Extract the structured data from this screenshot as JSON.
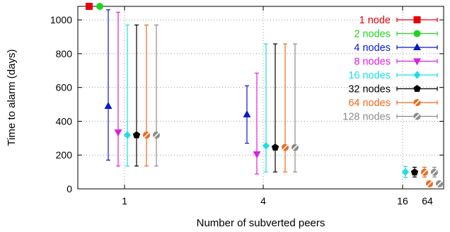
{
  "chart_data": {
    "type": "scatter",
    "subtype": "grouped-errorbar",
    "title": "",
    "xlabel": "Number of subverted peers",
    "ylabel": "Time to alarm (days)",
    "ylim": [
      0,
      1080
    ],
    "yticks": [
      0,
      200,
      400,
      600,
      800,
      1000
    ],
    "categories": [
      "1",
      "4",
      "16",
      "64"
    ],
    "grid": true,
    "legend_position": "top-right",
    "series": [
      {
        "name": "1 node",
        "color": "#e8000b",
        "marker": "square",
        "points": [
          {
            "x": "1",
            "y": 1080,
            "low": null,
            "high": null
          }
        ]
      },
      {
        "name": "2 nodes",
        "color": "#22d322",
        "marker": "circle",
        "points": [
          {
            "x": "1",
            "y": 1080,
            "low": null,
            "high": null
          }
        ]
      },
      {
        "name": "4 nodes",
        "color": "#0a18c8",
        "marker": "triangle-up",
        "points": [
          {
            "x": "1",
            "y": 490,
            "low": 170,
            "high": 1060
          },
          {
            "x": "4",
            "y": 440,
            "low": 270,
            "high": 610
          }
        ]
      },
      {
        "name": "8 nodes",
        "color": "#e01ee0",
        "marker": "triangle-down",
        "points": [
          {
            "x": "1",
            "y": 335,
            "low": 135,
            "high": 1045
          },
          {
            "x": "4",
            "y": 205,
            "low": 88,
            "high": 685
          }
        ]
      },
      {
        "name": "16 nodes",
        "color": "#1be0e6",
        "marker": "diamond",
        "points": [
          {
            "x": "1",
            "y": 318,
            "low": 135,
            "high": 970
          },
          {
            "x": "4",
            "y": 255,
            "low": 100,
            "high": 858
          },
          {
            "x": "16",
            "y": 100,
            "low": 68,
            "high": 133
          }
        ]
      },
      {
        "name": "32 nodes",
        "color": "#000000",
        "marker": "pentagon",
        "points": [
          {
            "x": "1",
            "y": 318,
            "low": 135,
            "high": 970
          },
          {
            "x": "4",
            "y": 245,
            "low": 100,
            "high": 858
          },
          {
            "x": "16",
            "y": 98,
            "low": 70,
            "high": 128
          }
        ]
      },
      {
        "name": "64 nodes",
        "color": "#ef6a1d",
        "marker": "circle-open",
        "points": [
          {
            "x": "1",
            "y": 318,
            "low": 135,
            "high": 970
          },
          {
            "x": "4",
            "y": 245,
            "low": 100,
            "high": 858
          },
          {
            "x": "16",
            "y": 98,
            "low": 70,
            "high": 128
          },
          {
            "x": "64",
            "y": 30,
            "low": null,
            "high": null
          }
        ]
      },
      {
        "name": "128 nodes",
        "color": "#8c8c8c",
        "marker": "circle-open",
        "points": [
          {
            "x": "1",
            "y": 318,
            "low": 135,
            "high": 970
          },
          {
            "x": "4",
            "y": 245,
            "low": 100,
            "high": 858
          },
          {
            "x": "16",
            "y": 98,
            "low": 70,
            "high": 128
          },
          {
            "x": "64",
            "y": 30,
            "low": null,
            "high": null
          }
        ]
      }
    ]
  }
}
